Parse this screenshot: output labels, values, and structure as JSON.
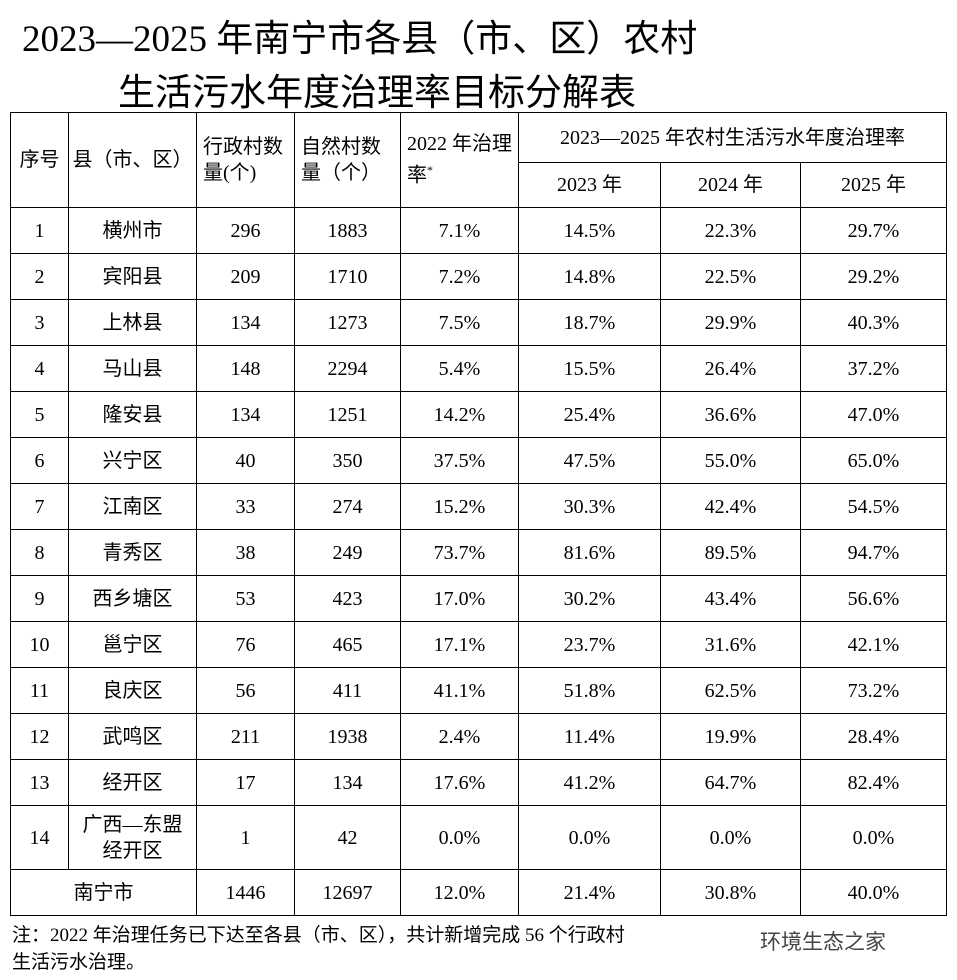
{
  "title": [
    "2023—2025 年南宁市各县（市、区）农村",
    "生活污水年度治理率目标分解表"
  ],
  "table": {
    "header": [
      "序号",
      "县（市、区）",
      "行政村数量(个)",
      "自然村数量（个）",
      "2022 年治理率"
    ],
    "header_mark": "*",
    "group_header": "2023—2025 年农村生活污水年度治理率",
    "years": [
      "2023 年",
      "2024 年",
      "2025 年"
    ],
    "rows": [
      [
        "1",
        "横州市",
        "296",
        "1883",
        "7.1%",
        "14.5%",
        "22.3%",
        "29.7%"
      ],
      [
        "2",
        "宾阳县",
        "209",
        "1710",
        "7.2%",
        "14.8%",
        "22.5%",
        "29.2%"
      ],
      [
        "3",
        "上林县",
        "134",
        "1273",
        "7.5%",
        "18.7%",
        "29.9%",
        "40.3%"
      ],
      [
        "4",
        "马山县",
        "148",
        "2294",
        "5.4%",
        "15.5%",
        "26.4%",
        "37.2%"
      ],
      [
        "5",
        "隆安县",
        "134",
        "1251",
        "14.2%",
        "25.4%",
        "36.6%",
        "47.0%"
      ],
      [
        "6",
        "兴宁区",
        "40",
        "350",
        "37.5%",
        "47.5%",
        "55.0%",
        "65.0%"
      ],
      [
        "7",
        "江南区",
        "33",
        "274",
        "15.2%",
        "30.3%",
        "42.4%",
        "54.5%"
      ],
      [
        "8",
        "青秀区",
        "38",
        "249",
        "73.7%",
        "81.6%",
        "89.5%",
        "94.7%"
      ],
      [
        "9",
        "西乡塘区",
        "53",
        "423",
        "17.0%",
        "30.2%",
        "43.4%",
        "56.6%"
      ],
      [
        "10",
        "邕宁区",
        "76",
        "465",
        "17.1%",
        "23.7%",
        "31.6%",
        "42.1%"
      ],
      [
        "11",
        "良庆区",
        "56",
        "411",
        "41.1%",
        "51.8%",
        "62.5%",
        "73.2%"
      ],
      [
        "12",
        "武鸣区",
        "211",
        "1938",
        "2.4%",
        "11.4%",
        "19.9%",
        "28.4%"
      ],
      [
        "13",
        "经开区",
        "17",
        "134",
        "17.6%",
        "41.2%",
        "64.7%",
        "82.4%"
      ],
      [
        "14",
        "广西—东盟经开区",
        "1",
        "42",
        "0.0%",
        "0.0%",
        "0.0%",
        "0.0%"
      ]
    ],
    "total": [
      "南宁市",
      "1446",
      "12697",
      "12.0%",
      "21.4%",
      "30.8%",
      "40.0%"
    ]
  },
  "note": "注：2022 年治理任务已下达至各县（市、区），共计新增完成 56 个行政村生活污水治理。",
  "watermark": "环境生态之家"
}
